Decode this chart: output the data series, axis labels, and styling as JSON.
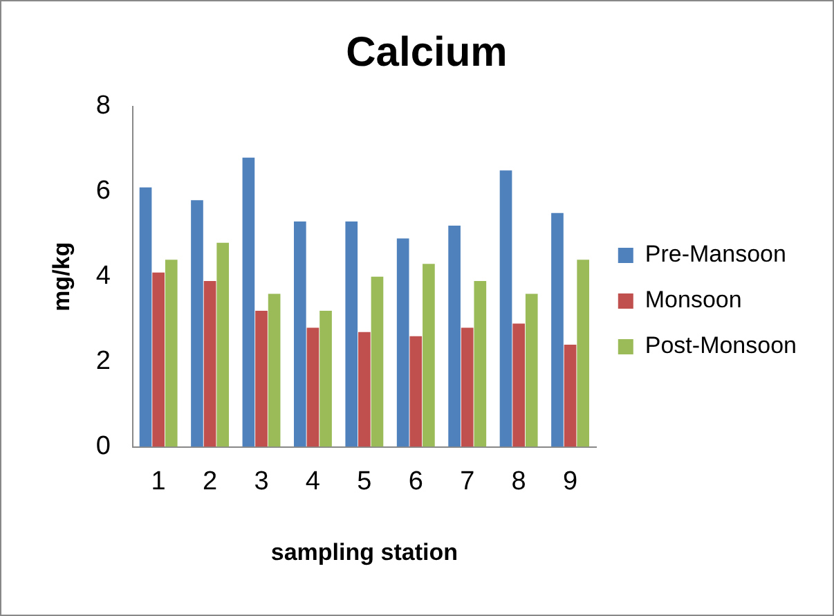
{
  "chart_data": {
    "type": "bar",
    "title": "Calcium",
    "xlabel": "sampling station",
    "ylabel": "mg/kg",
    "categories": [
      "1",
      "2",
      "3",
      "4",
      "5",
      "6",
      "7",
      "8",
      "9"
    ],
    "series": [
      {
        "name": "Pre-Mansoon",
        "color": "#4f81bd",
        "values": [
          6.1,
          5.8,
          6.8,
          5.3,
          5.3,
          4.9,
          5.2,
          6.5,
          5.5
        ]
      },
      {
        "name": "Monsoon",
        "color": "#c0504d",
        "values": [
          4.1,
          3.9,
          3.2,
          2.8,
          2.7,
          2.6,
          2.8,
          2.9,
          2.4
        ]
      },
      {
        "name": "Post-Monsoon",
        "color": "#9bbb59",
        "values": [
          4.4,
          4.8,
          3.6,
          3.2,
          4.0,
          4.3,
          3.9,
          3.6,
          4.4
        ]
      }
    ],
    "ylim": [
      0,
      8
    ],
    "yticks": [
      0,
      2,
      4,
      6,
      8
    ],
    "grid": false,
    "legend": "right"
  }
}
